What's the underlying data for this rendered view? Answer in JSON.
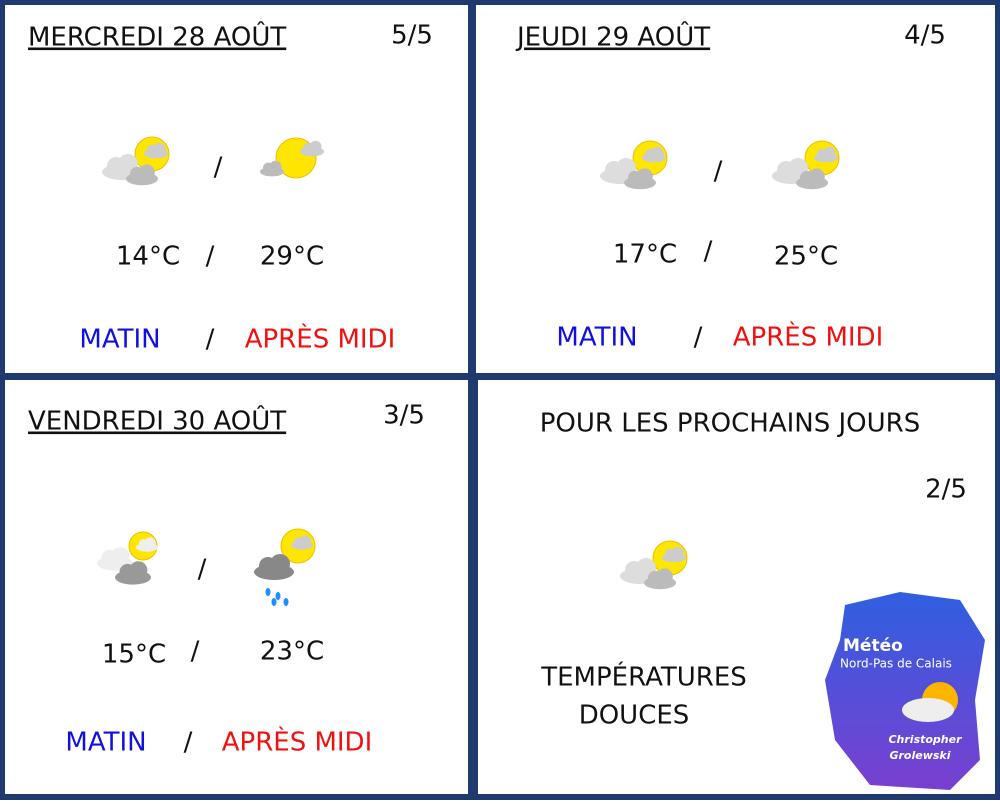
{
  "separator": "/",
  "panels": [
    {
      "title": "MERCREDI 28 AOÛT",
      "rating": "5/5",
      "morning_temp": "14°C",
      "afternoon_temp": "29°C",
      "morning_label": "MATIN",
      "afternoon_label": "APRÈS MIDI"
    },
    {
      "title": "JEUDI 29 AOÛT",
      "rating": "4/5",
      "morning_temp": "17°C",
      "afternoon_temp": "25°C",
      "morning_label": "MATIN",
      "afternoon_label": "APRÈS MIDI"
    },
    {
      "title": "VENDREDI 30 AOÛT",
      "rating": "3/5",
      "morning_temp": "15°C",
      "afternoon_temp": "23°C",
      "morning_label": "MATIN",
      "afternoon_label": "APRÈS MIDI"
    }
  ],
  "outlook": {
    "title": "POUR LES PROCHAINS JOURS",
    "rating": "2/5",
    "text": [
      "TEMPÉRATURES",
      "DOUCES"
    ]
  },
  "logo": {
    "title": "Météo",
    "region": "Nord-Pas de Calais",
    "author": [
      "Christopher",
      "Grolewski"
    ]
  }
}
